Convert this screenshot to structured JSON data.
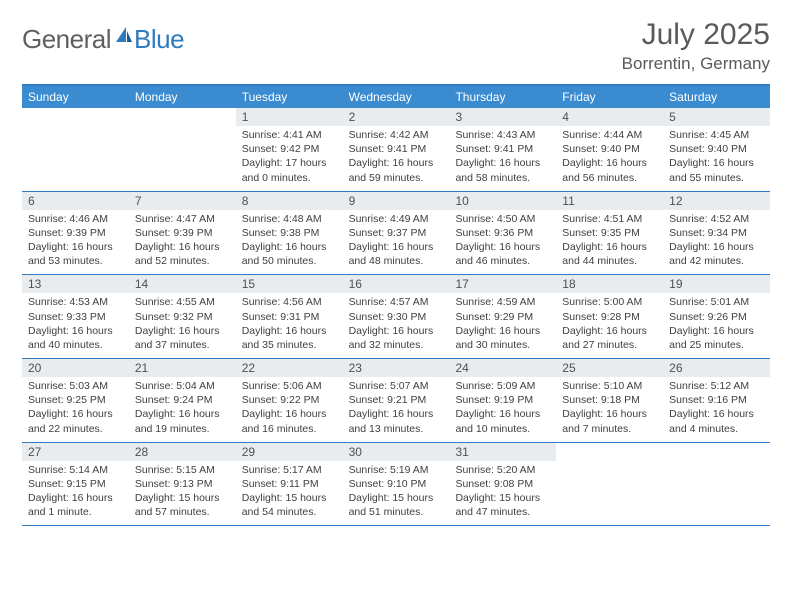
{
  "brand": {
    "part1": "General",
    "part2": "Blue"
  },
  "title": "July 2025",
  "location": "Borrentin, Germany",
  "colors": {
    "header_blue": "#3b8bd0",
    "border_blue": "#2f7bbf",
    "daynum_bg": "#e9ecef",
    "text_gray": "#5a5a5a"
  },
  "dayHeaders": [
    "Sunday",
    "Monday",
    "Tuesday",
    "Wednesday",
    "Thursday",
    "Friday",
    "Saturday"
  ],
  "weeks": [
    [
      {
        "n": "",
        "sunrise": "",
        "sunset": "",
        "daylight": ""
      },
      {
        "n": "",
        "sunrise": "",
        "sunset": "",
        "daylight": ""
      },
      {
        "n": "1",
        "sunrise": "Sunrise: 4:41 AM",
        "sunset": "Sunset: 9:42 PM",
        "daylight": "Daylight: 17 hours and 0 minutes."
      },
      {
        "n": "2",
        "sunrise": "Sunrise: 4:42 AM",
        "sunset": "Sunset: 9:41 PM",
        "daylight": "Daylight: 16 hours and 59 minutes."
      },
      {
        "n": "3",
        "sunrise": "Sunrise: 4:43 AM",
        "sunset": "Sunset: 9:41 PM",
        "daylight": "Daylight: 16 hours and 58 minutes."
      },
      {
        "n": "4",
        "sunrise": "Sunrise: 4:44 AM",
        "sunset": "Sunset: 9:40 PM",
        "daylight": "Daylight: 16 hours and 56 minutes."
      },
      {
        "n": "5",
        "sunrise": "Sunrise: 4:45 AM",
        "sunset": "Sunset: 9:40 PM",
        "daylight": "Daylight: 16 hours and 55 minutes."
      }
    ],
    [
      {
        "n": "6",
        "sunrise": "Sunrise: 4:46 AM",
        "sunset": "Sunset: 9:39 PM",
        "daylight": "Daylight: 16 hours and 53 minutes."
      },
      {
        "n": "7",
        "sunrise": "Sunrise: 4:47 AM",
        "sunset": "Sunset: 9:39 PM",
        "daylight": "Daylight: 16 hours and 52 minutes."
      },
      {
        "n": "8",
        "sunrise": "Sunrise: 4:48 AM",
        "sunset": "Sunset: 9:38 PM",
        "daylight": "Daylight: 16 hours and 50 minutes."
      },
      {
        "n": "9",
        "sunrise": "Sunrise: 4:49 AM",
        "sunset": "Sunset: 9:37 PM",
        "daylight": "Daylight: 16 hours and 48 minutes."
      },
      {
        "n": "10",
        "sunrise": "Sunrise: 4:50 AM",
        "sunset": "Sunset: 9:36 PM",
        "daylight": "Daylight: 16 hours and 46 minutes."
      },
      {
        "n": "11",
        "sunrise": "Sunrise: 4:51 AM",
        "sunset": "Sunset: 9:35 PM",
        "daylight": "Daylight: 16 hours and 44 minutes."
      },
      {
        "n": "12",
        "sunrise": "Sunrise: 4:52 AM",
        "sunset": "Sunset: 9:34 PM",
        "daylight": "Daylight: 16 hours and 42 minutes."
      }
    ],
    [
      {
        "n": "13",
        "sunrise": "Sunrise: 4:53 AM",
        "sunset": "Sunset: 9:33 PM",
        "daylight": "Daylight: 16 hours and 40 minutes."
      },
      {
        "n": "14",
        "sunrise": "Sunrise: 4:55 AM",
        "sunset": "Sunset: 9:32 PM",
        "daylight": "Daylight: 16 hours and 37 minutes."
      },
      {
        "n": "15",
        "sunrise": "Sunrise: 4:56 AM",
        "sunset": "Sunset: 9:31 PM",
        "daylight": "Daylight: 16 hours and 35 minutes."
      },
      {
        "n": "16",
        "sunrise": "Sunrise: 4:57 AM",
        "sunset": "Sunset: 9:30 PM",
        "daylight": "Daylight: 16 hours and 32 minutes."
      },
      {
        "n": "17",
        "sunrise": "Sunrise: 4:59 AM",
        "sunset": "Sunset: 9:29 PM",
        "daylight": "Daylight: 16 hours and 30 minutes."
      },
      {
        "n": "18",
        "sunrise": "Sunrise: 5:00 AM",
        "sunset": "Sunset: 9:28 PM",
        "daylight": "Daylight: 16 hours and 27 minutes."
      },
      {
        "n": "19",
        "sunrise": "Sunrise: 5:01 AM",
        "sunset": "Sunset: 9:26 PM",
        "daylight": "Daylight: 16 hours and 25 minutes."
      }
    ],
    [
      {
        "n": "20",
        "sunrise": "Sunrise: 5:03 AM",
        "sunset": "Sunset: 9:25 PM",
        "daylight": "Daylight: 16 hours and 22 minutes."
      },
      {
        "n": "21",
        "sunrise": "Sunrise: 5:04 AM",
        "sunset": "Sunset: 9:24 PM",
        "daylight": "Daylight: 16 hours and 19 minutes."
      },
      {
        "n": "22",
        "sunrise": "Sunrise: 5:06 AM",
        "sunset": "Sunset: 9:22 PM",
        "daylight": "Daylight: 16 hours and 16 minutes."
      },
      {
        "n": "23",
        "sunrise": "Sunrise: 5:07 AM",
        "sunset": "Sunset: 9:21 PM",
        "daylight": "Daylight: 16 hours and 13 minutes."
      },
      {
        "n": "24",
        "sunrise": "Sunrise: 5:09 AM",
        "sunset": "Sunset: 9:19 PM",
        "daylight": "Daylight: 16 hours and 10 minutes."
      },
      {
        "n": "25",
        "sunrise": "Sunrise: 5:10 AM",
        "sunset": "Sunset: 9:18 PM",
        "daylight": "Daylight: 16 hours and 7 minutes."
      },
      {
        "n": "26",
        "sunrise": "Sunrise: 5:12 AM",
        "sunset": "Sunset: 9:16 PM",
        "daylight": "Daylight: 16 hours and 4 minutes."
      }
    ],
    [
      {
        "n": "27",
        "sunrise": "Sunrise: 5:14 AM",
        "sunset": "Sunset: 9:15 PM",
        "daylight": "Daylight: 16 hours and 1 minute."
      },
      {
        "n": "28",
        "sunrise": "Sunrise: 5:15 AM",
        "sunset": "Sunset: 9:13 PM",
        "daylight": "Daylight: 15 hours and 57 minutes."
      },
      {
        "n": "29",
        "sunrise": "Sunrise: 5:17 AM",
        "sunset": "Sunset: 9:11 PM",
        "daylight": "Daylight: 15 hours and 54 minutes."
      },
      {
        "n": "30",
        "sunrise": "Sunrise: 5:19 AM",
        "sunset": "Sunset: 9:10 PM",
        "daylight": "Daylight: 15 hours and 51 minutes."
      },
      {
        "n": "31",
        "sunrise": "Sunrise: 5:20 AM",
        "sunset": "Sunset: 9:08 PM",
        "daylight": "Daylight: 15 hours and 47 minutes."
      },
      {
        "n": "",
        "sunrise": "",
        "sunset": "",
        "daylight": ""
      },
      {
        "n": "",
        "sunrise": "",
        "sunset": "",
        "daylight": ""
      }
    ]
  ]
}
